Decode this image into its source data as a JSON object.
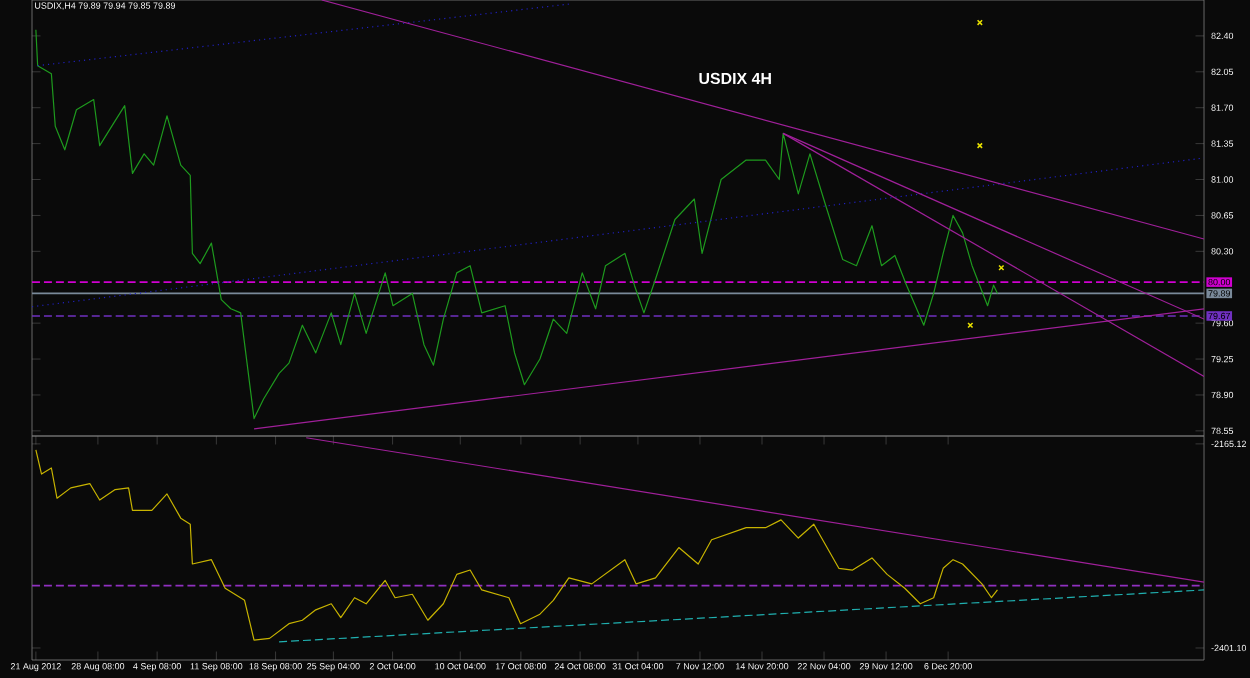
{
  "chart_data": [
    {
      "type": "line",
      "title": "USDIX 4H",
      "annotations": [
        "USDIX,H4 79.89 79.94 79.85 79.89"
      ],
      "xlim": [
        "2012-08-20T13:00",
        "2013-01-06T02:00"
      ],
      "ylim": [
        78.5,
        82.75
      ],
      "yticks": [
        {
          "value": 82.4,
          "label": "82.40"
        },
        {
          "value": 82.05,
          "label": "82.05"
        },
        {
          "value": 81.7,
          "label": "81.70"
        },
        {
          "value": 81.35,
          "label": "81.35"
        },
        {
          "value": 81.0,
          "label": "81.00"
        },
        {
          "value": 80.65,
          "label": "80.65"
        },
        {
          "value": 80.3,
          "label": "80.30"
        },
        {
          "value": 79.6,
          "label": "79.60"
        },
        {
          "value": 79.25,
          "label": "79.25"
        },
        {
          "value": 78.9,
          "label": "78.90"
        },
        {
          "value": 78.55,
          "label": "78.55"
        }
      ],
      "tick_labels": "y",
      "series": [
        {
          "color": "#1e9a1e",
          "x": [
            "2012-08-21T00:00",
            "2012-08-21T05:00",
            "2012-08-22T20:00",
            "2012-08-23T07:00",
            "2012-08-24T10:00",
            "2012-08-25T19:00",
            "2012-08-27T20:00",
            "2012-08-28T13:00",
            "2012-08-30T03:00",
            "2012-08-31T12:00",
            "2012-09-01T10:00",
            "2012-09-02T19:00",
            "2012-09-03T22:00",
            "2012-09-05T12:00",
            "2012-09-07T03:00",
            "2012-09-08T06:00",
            "2012-09-08T12:00",
            "2012-09-09T10:00",
            "2012-09-10T18:00",
            "2012-09-11T22:00",
            "2012-09-13T01:00",
            "2012-09-14T05:00",
            "2012-09-15T19:00",
            "2012-09-16T22:00",
            "2012-09-18T18:00",
            "2012-09-19T22:00",
            "2012-09-21T12:00",
            "2012-09-23T02:00",
            "2012-09-24T22:00",
            "2012-09-26T01:00",
            "2012-09-27T16:00",
            "2012-09-29T01:00",
            "2012-10-01T07:00",
            "2012-10-02T05:00",
            "2012-10-04T12:00",
            "2012-10-05T21:00",
            "2012-10-07T00:00",
            "2012-10-08T04:00",
            "2012-10-09T18:00",
            "2012-10-11T08:00",
            "2012-10-12T17:00",
            "2012-10-15T11:00",
            "2012-10-16T14:00",
            "2012-10-17T18:00",
            "2012-10-19T14:00",
            "2012-10-21T04:00",
            "2012-10-22T18:00",
            "2012-10-24T14:00",
            "2012-10-26T04:00",
            "2012-10-27T08:00",
            "2012-10-29T15:00",
            "2012-10-30T18:00",
            "2012-10-31T21:00",
            "2012-11-02T06:00",
            "2012-11-04T13:00",
            "2012-11-06T20:00",
            "2012-11-07T18:00",
            "2012-11-10T00:00",
            "2012-11-12T23:00",
            "2012-11-15T06:00",
            "2012-11-16T21:00",
            "2012-11-17T08:00",
            "2012-11-19T03:00",
            "2012-11-20T12:00",
            "2012-11-22T03:00",
            "2012-11-24T09:00",
            "2012-11-26T00:00",
            "2012-11-27T20:00",
            "2012-11-28T23:00",
            "2012-11-30T13:00",
            "2012-12-01T22:00",
            "2012-12-03T23:00",
            "2012-12-05T03:00",
            "2012-12-06T06:00",
            "2012-12-07T10:00",
            "2012-12-08T13:00",
            "2012-12-09T16:00",
            "2012-12-11T12:00",
            "2012-12-12T05:00",
            "2012-12-12T16:00"
          ],
          "values": [
            82.46,
            82.11,
            82.03,
            81.52,
            81.29,
            81.68,
            81.78,
            81.33,
            81.54,
            81.72,
            81.06,
            81.25,
            81.14,
            81.62,
            81.14,
            81.04,
            80.28,
            80.18,
            80.38,
            79.83,
            79.74,
            79.7,
            78.67,
            78.86,
            79.11,
            79.21,
            79.58,
            79.31,
            79.7,
            79.39,
            79.89,
            79.5,
            80.09,
            79.77,
            79.89,
            79.39,
            79.19,
            79.64,
            80.09,
            80.16,
            79.7,
            79.77,
            79.31,
            79.0,
            79.25,
            79.64,
            79.5,
            80.09,
            79.74,
            80.16,
            80.28,
            79.97,
            79.7,
            80.03,
            80.61,
            80.81,
            80.28,
            81.0,
            81.19,
            81.19,
            81.0,
            81.45,
            80.86,
            81.25,
            80.81,
            80.22,
            80.16,
            80.55,
            80.16,
            80.26,
            79.97,
            79.58,
            79.89,
            80.28,
            80.65,
            80.48,
            80.16,
            79.77,
            79.97,
            79.89
          ]
        },
        {
          "type": "line",
          "line_style": "dotted",
          "color": "#2020c0",
          "x": [
            "2012-08-21T05:00",
            "2012-10-23T00:00"
          ],
          "values": [
            82.11,
            82.71
          ]
        },
        {
          "type": "line",
          "line_style": "dotted",
          "color": "#2020c0",
          "x": [
            "2012-08-20T13:00",
            "2013-01-06T02:00"
          ],
          "values": [
            79.76,
            81.21
          ]
        },
        {
          "type": "line",
          "color": "#a0209a",
          "x": [
            "2012-09-23T19:00",
            "2013-01-06T02:00"
          ],
          "values": [
            82.75,
            80.42
          ]
        },
        {
          "type": "line",
          "color": "#a0209a",
          "x": [
            "2012-09-15T19:00",
            "2013-01-06T02:00"
          ],
          "values": [
            78.57,
            79.74
          ]
        },
        {
          "type": "line",
          "color": "#a0209a",
          "x": [
            "2012-11-17T08:00",
            "2013-01-06T02:00"
          ],
          "values": [
            81.45,
            79.64
          ]
        },
        {
          "type": "line",
          "color": "#a0209a",
          "x": [
            "2012-11-17T08:00",
            "2013-01-06T02:00"
          ],
          "values": [
            81.45,
            79.08
          ]
        },
        {
          "type": "scatter",
          "marker": "cross",
          "color": "#e8e000",
          "x": [
            "2012-12-10T14:00",
            "2012-12-10T14:00",
            "2012-12-13T03:00",
            "2012-12-09T11:00"
          ],
          "values": [
            82.53,
            81.33,
            80.14,
            79.58
          ]
        }
      ],
      "ref_lines": [
        {
          "axis": "y",
          "value": 80.0,
          "label": "80.00",
          "color": "#d000d0",
          "line_style": "dashed"
        },
        {
          "axis": "y",
          "value": 79.89,
          "label": "79.89",
          "color": "#7a8a9a",
          "line_style": "solid"
        },
        {
          "axis": "y",
          "value": 79.67,
          "label": "79.67",
          "color": "#7030c0",
          "line_style": "dashed"
        }
      ]
    },
    {
      "type": "line",
      "xlim": [
        "2012-08-20T13:00",
        "2013-01-06T02:00"
      ],
      "ylim": [
        -2415,
        -2156
      ],
      "yticks": [
        {
          "value": -2165.12,
          "label": "-2165.12"
        },
        {
          "value": -2401.1,
          "label": "-2401.10"
        }
      ],
      "xticks": [
        {
          "value": "2012-08-21T00:00",
          "label": "21 Aug 2012"
        },
        {
          "value": "2012-08-28T08:00",
          "label": "28 Aug 08:00"
        },
        {
          "value": "2012-09-04T08:00",
          "label": "4 Sep 08:00"
        },
        {
          "value": "2012-09-11T08:00",
          "label": "11 Sep 08:00"
        },
        {
          "value": "2012-09-18T08:00",
          "label": "18 Sep 08:00"
        },
        {
          "value": "2012-09-25T04:00",
          "label": "25 Sep 04:00"
        },
        {
          "value": "2012-10-02T04:00",
          "label": "2 Oct 04:00"
        },
        {
          "value": "2012-10-10T04:00",
          "label": "10 Oct 04:00"
        },
        {
          "value": "2012-10-17T08:00",
          "label": "17 Oct 08:00"
        },
        {
          "value": "2012-10-24T08:00",
          "label": "24 Oct 08:00"
        },
        {
          "value": "2012-10-31T04:00",
          "label": "31 Oct 04:00"
        },
        {
          "value": "2012-11-07T12:00",
          "label": "7 Nov 12:00"
        },
        {
          "value": "2012-11-14T20:00",
          "label": "14 Nov 20:00"
        },
        {
          "value": "2012-11-22T04:00",
          "label": "22 Nov 04:00"
        },
        {
          "value": "2012-11-29T12:00",
          "label": "29 Nov 12:00"
        },
        {
          "value": "2012-12-06T20:00",
          "label": "6 Dec 20:00"
        }
      ],
      "series": [
        {
          "color": "#c8b400",
          "x": [
            "2012-08-21T00:00",
            "2012-08-21T16:00",
            "2012-08-22T20:00",
            "2012-08-23T12:00",
            "2012-08-25T03:00",
            "2012-08-27T09:00",
            "2012-08-28T13:00",
            "2012-08-30T09:00",
            "2012-08-31T23:00",
            "2012-09-01T10:00",
            "2012-09-03T17:00",
            "2012-09-05T12:00",
            "2012-09-07T03:00",
            "2012-09-08T06:00",
            "2012-09-08T12:00",
            "2012-09-10T18:00",
            "2012-09-12T09:00",
            "2012-09-14T16:00",
            "2012-09-15T19:00",
            "2012-09-17T15:00",
            "2012-09-19T22:00",
            "2012-09-21T12:00",
            "2012-09-23T02:00",
            "2012-09-24T22:00",
            "2012-09-26T01:00",
            "2012-09-27T16:00",
            "2012-09-29T01:00",
            "2012-10-01T07:00",
            "2012-10-02T11:00",
            "2012-10-04T12:00",
            "2012-10-06T08:00",
            "2012-10-08T04:00",
            "2012-10-09T18:00",
            "2012-10-11T08:00",
            "2012-10-12T17:00",
            "2012-10-15T22:00",
            "2012-10-17T07:00",
            "2012-10-19T14:00",
            "2012-10-21T04:00",
            "2012-10-23T00:00",
            "2012-10-25T17:00",
            "2012-10-29T15:00",
            "2012-10-30T23:00",
            "2012-11-02T06:00",
            "2012-11-05T00:00",
            "2012-11-07T07:00",
            "2012-11-08T21:00",
            "2012-11-12T23:00",
            "2012-11-15T06:00",
            "2012-11-17T02:00",
            "2012-11-19T03:00",
            "2012-11-20T23:00",
            "2012-11-23T22:00",
            "2012-11-25T13:00",
            "2012-11-27T20:00",
            "2012-11-29T15:00",
            "2012-12-01T17:00",
            "2012-12-03T13:00",
            "2012-12-05T03:00",
            "2012-12-06T06:00",
            "2012-12-07T10:00",
            "2012-12-08T13:00",
            "2012-12-10T20:00",
            "2012-12-11T23:00",
            "2012-12-12T16:00"
          ],
          "values": [
            -2172,
            -2200,
            -2193,
            -2228,
            -2216,
            -2211,
            -2230,
            -2218,
            -2216,
            -2242,
            -2242,
            -2223,
            -2251,
            -2258,
            -2304,
            -2299,
            -2332,
            -2346,
            -2392,
            -2390,
            -2373,
            -2369,
            -2357,
            -2350,
            -2366,
            -2343,
            -2350,
            -2323,
            -2343,
            -2339,
            -2369,
            -2350,
            -2316,
            -2311,
            -2334,
            -2343,
            -2373,
            -2362,
            -2346,
            -2320,
            -2327,
            -2299,
            -2327,
            -2320,
            -2285,
            -2304,
            -2276,
            -2262,
            -2262,
            -2253,
            -2274,
            -2258,
            -2309,
            -2311,
            -2297,
            -2316,
            -2332,
            -2350,
            -2343,
            -2309,
            -2299,
            -2304,
            -2327,
            -2343,
            -2334
          ]
        },
        {
          "type": "line",
          "color": "#a0209a",
          "x": [
            "2012-09-21T23:00",
            "2013-01-06T02:00"
          ],
          "values": [
            -2158,
            -2325
          ]
        },
        {
          "type": "line",
          "line_style": "dashed",
          "color": "#20b0b0",
          "x": [
            "2012-09-18T18:00",
            "2013-01-06T02:00"
          ],
          "values": [
            -2394,
            -2334
          ]
        }
      ],
      "ref_lines": [
        {
          "axis": "y",
          "value": -2329,
          "color": "#9030c0",
          "line_style": "dashed"
        }
      ]
    }
  ]
}
